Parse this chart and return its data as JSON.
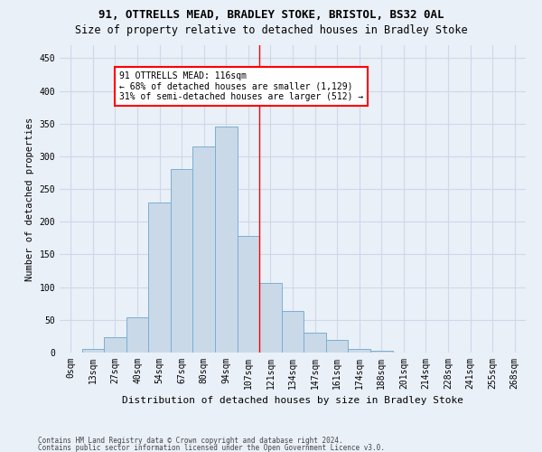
{
  "title1": "91, OTTRELLS MEAD, BRADLEY STOKE, BRISTOL, BS32 0AL",
  "title2": "Size of property relative to detached houses in Bradley Stoke",
  "xlabel": "Distribution of detached houses by size in Bradley Stoke",
  "ylabel": "Number of detached properties",
  "bar_labels": [
    "0sqm",
    "13sqm",
    "27sqm",
    "40sqm",
    "54sqm",
    "67sqm",
    "80sqm",
    "94sqm",
    "107sqm",
    "121sqm",
    "134sqm",
    "147sqm",
    "161sqm",
    "174sqm",
    "188sqm",
    "201sqm",
    "214sqm",
    "228sqm",
    "241sqm",
    "255sqm",
    "268sqm"
  ],
  "bar_values": [
    0,
    5,
    23,
    54,
    230,
    280,
    315,
    345,
    178,
    107,
    64,
    31,
    19,
    5,
    3,
    0,
    0,
    0,
    0,
    0,
    0
  ],
  "bar_color": "#c9d9e8",
  "bar_edge_color": "#7bafd4",
  "property_line_bin": 8,
  "annotation_text": "91 OTTRELLS MEAD: 116sqm\n← 68% of detached houses are smaller (1,129)\n31% of semi-detached houses are larger (512) →",
  "annotation_box_color": "white",
  "annotation_border_color": "red",
  "vline_color": "red",
  "ylim": [
    0,
    470
  ],
  "yticks": [
    0,
    50,
    100,
    150,
    200,
    250,
    300,
    350,
    400,
    450
  ],
  "grid_color": "#d0d8e8",
  "footer1": "Contains HM Land Registry data © Crown copyright and database right 2024.",
  "footer2": "Contains public sector information licensed under the Open Government Licence v3.0.",
  "bg_color": "#eaf0f8",
  "title1_fontsize": 9,
  "title2_fontsize": 8.5,
  "xlabel_fontsize": 8,
  "ylabel_fontsize": 7.5,
  "tick_fontsize": 7,
  "annotation_fontsize": 7,
  "footer_fontsize": 5.5
}
